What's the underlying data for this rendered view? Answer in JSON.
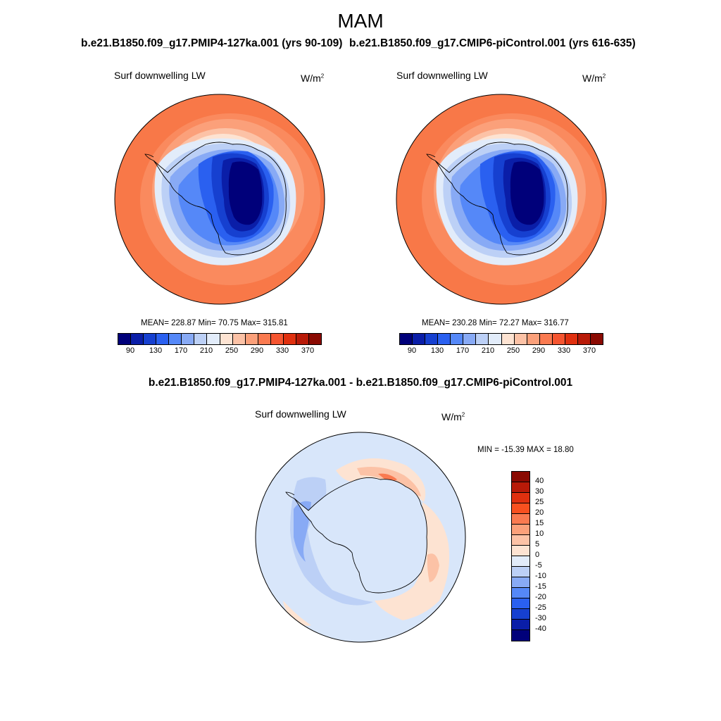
{
  "figure": {
    "main_title": "MAM",
    "left_panel": {
      "title": "b.e21.B1850.f09_g17.PMIP4-127ka.001 (yrs 90-109)",
      "variable": "Surf downwelling LW",
      "units": "W/m",
      "units_sup": "2",
      "stats": "MEAN= 228.87  Min=  70.75  Max= 315.81"
    },
    "right_panel": {
      "title": "b.e21.B1850.f09_g17.CMIP6-piControl.001 (yrs 616-635)",
      "variable": "Surf downwelling LW",
      "units": "W/m",
      "units_sup": "2",
      "stats": "MEAN= 230.28  Min=  72.27  Max= 316.77"
    },
    "diff_panel": {
      "title": "b.e21.B1850.f09_g17.PMIP4-127ka.001 - b.e21.B1850.f09_g17.CMIP6-piControl.001",
      "variable": "Surf downwelling LW",
      "units": "W/m",
      "units_sup": "2",
      "stats": "MIN = -15.39 MAX =  18.80"
    }
  },
  "colorbar_abs": {
    "colors": [
      "#00007a",
      "#0a1ea8",
      "#1640d0",
      "#2a60f0",
      "#5588f8",
      "#88aaf5",
      "#bcd0f6",
      "#e2ecfa",
      "#fde3d2",
      "#fcc2a6",
      "#fba07a",
      "#fa7a50",
      "#f55530",
      "#e0300f",
      "#b81a08",
      "#8a0a02"
    ],
    "tick_labels": [
      "90",
      "130",
      "170",
      "210",
      "250",
      "290",
      "330",
      "370"
    ]
  },
  "colorbar_diff": {
    "colors": [
      "#8a0a02",
      "#b81a08",
      "#e0300f",
      "#f8501f",
      "#fa7a50",
      "#fba07a",
      "#fcc2a6",
      "#fde3d2",
      "#e2ecfa",
      "#bcd0f6",
      "#88aaf5",
      "#5588f8",
      "#2a60f0",
      "#1640d0",
      "#0a1ea8",
      "#00007a"
    ],
    "tick_labels": [
      "40",
      "30",
      "25",
      "20",
      "15",
      "10",
      "5",
      "0",
      "-5",
      "-10",
      "-15",
      "-20",
      "-25",
      "-30",
      "-40"
    ]
  },
  "colors": {
    "ocean_far": "#f87848",
    "antarctic_core": "#00007a",
    "coastline": "#000000",
    "diff_background": "#d8e6fa"
  }
}
